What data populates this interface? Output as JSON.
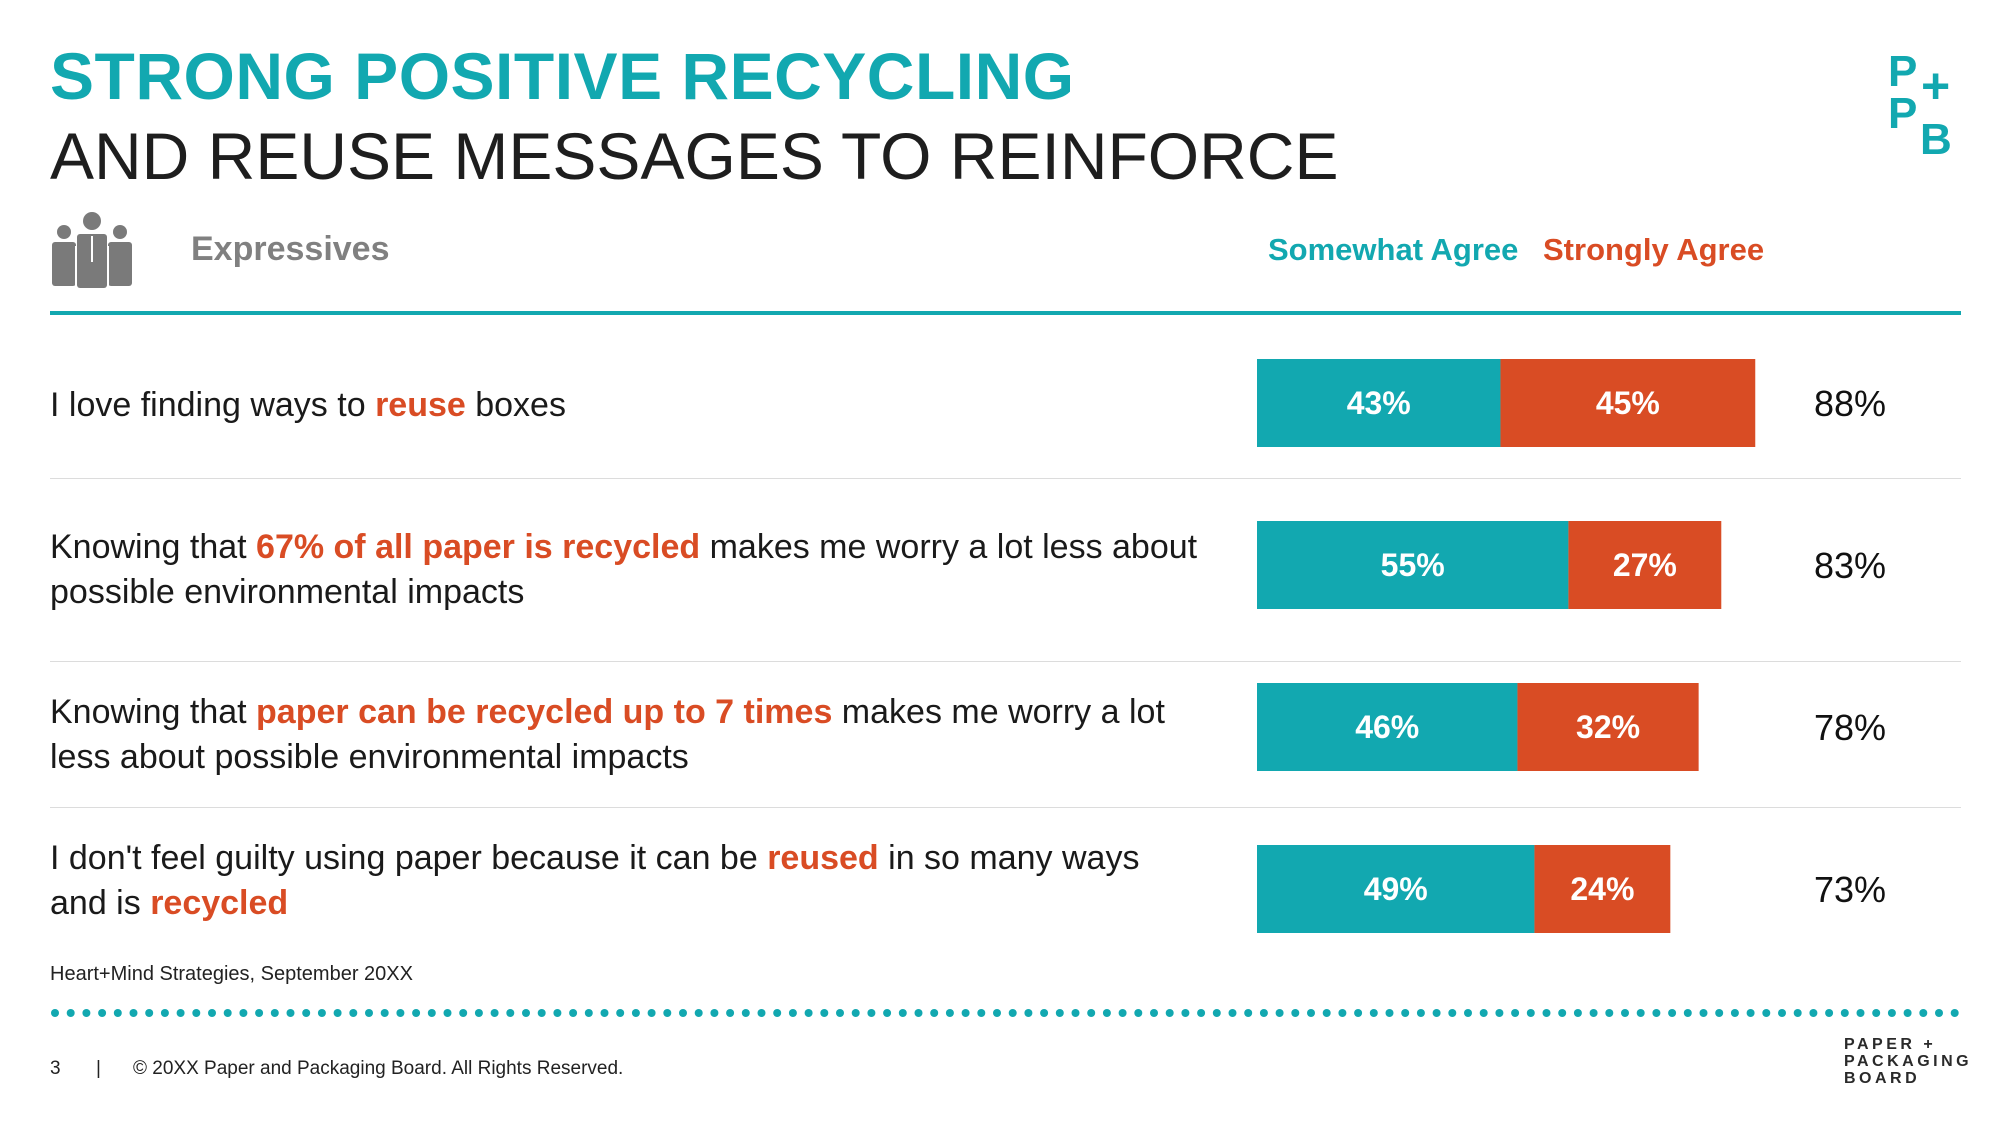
{
  "header": {
    "title_line1": "STRONG POSITIVE RECYCLING",
    "title_line2": "AND REUSE MESSAGES TO REINFORCE"
  },
  "logo": {
    "p1": "P",
    "plus": "+",
    "p2": "P",
    "b": "B"
  },
  "segment": {
    "label": "Expressives",
    "icon": "people-group-icon"
  },
  "colors": {
    "teal": "#12a8b0",
    "orange": "#d94c24",
    "gray_text": "#808080",
    "divider": "#dcdcdc"
  },
  "chart_data": {
    "type": "bar",
    "orientation": "horizontal",
    "stacked": true,
    "legend_placement": "top-right",
    "grid": false,
    "series": [
      {
        "name": "Somewhat Agree",
        "values": [
          43,
          55,
          46,
          49
        ]
      },
      {
        "name": "Strongly Agree",
        "values": [
          45,
          27,
          32,
          24
        ]
      }
    ],
    "value_labels": {
      "somewhat": [
        "43%",
        "55%",
        "46%",
        "49%"
      ],
      "strongly": [
        "45%",
        "27%",
        "32%",
        "24%"
      ]
    },
    "totals": [
      88,
      83,
      78,
      73
    ],
    "total_labels": [
      "88%",
      "83%",
      "78%",
      "73%"
    ],
    "categories": [
      {
        "parts": [
          {
            "text": "I love finding ways to ",
            "hl": false
          },
          {
            "text": "reuse",
            "hl": true
          },
          {
            "text": " boxes",
            "hl": false
          }
        ]
      },
      {
        "parts": [
          {
            "text": "Knowing that ",
            "hl": false
          },
          {
            "text": "67% of all paper is recycled",
            "hl": true
          },
          {
            "text": " makes me worry a lot less about possible environmental impacts",
            "hl": false
          }
        ]
      },
      {
        "parts": [
          {
            "text": "Knowing that ",
            "hl": false
          },
          {
            "text": "paper can be recycled up to 7 times",
            "hl": true
          },
          {
            "text": " makes me worry a lot less about possible environmental impacts",
            "hl": false
          }
        ]
      },
      {
        "parts": [
          {
            "text": "I don't feel guilty using paper because it can be ",
            "hl": false
          },
          {
            "text": "reused",
            "hl": true
          },
          {
            "text": " in so many ways and is ",
            "hl": false
          },
          {
            "text": "recycled",
            "hl": true
          }
        ]
      }
    ]
  },
  "source_note": "Heart+Mind Strategies, September 20XX",
  "footer": {
    "page_number": "3",
    "separator": "|",
    "copyright": "© 20XX Paper and Packaging Board. All Rights Reserved.",
    "logo_lines": [
      "PAPER +",
      "PACKAGING",
      "BOARD"
    ]
  }
}
